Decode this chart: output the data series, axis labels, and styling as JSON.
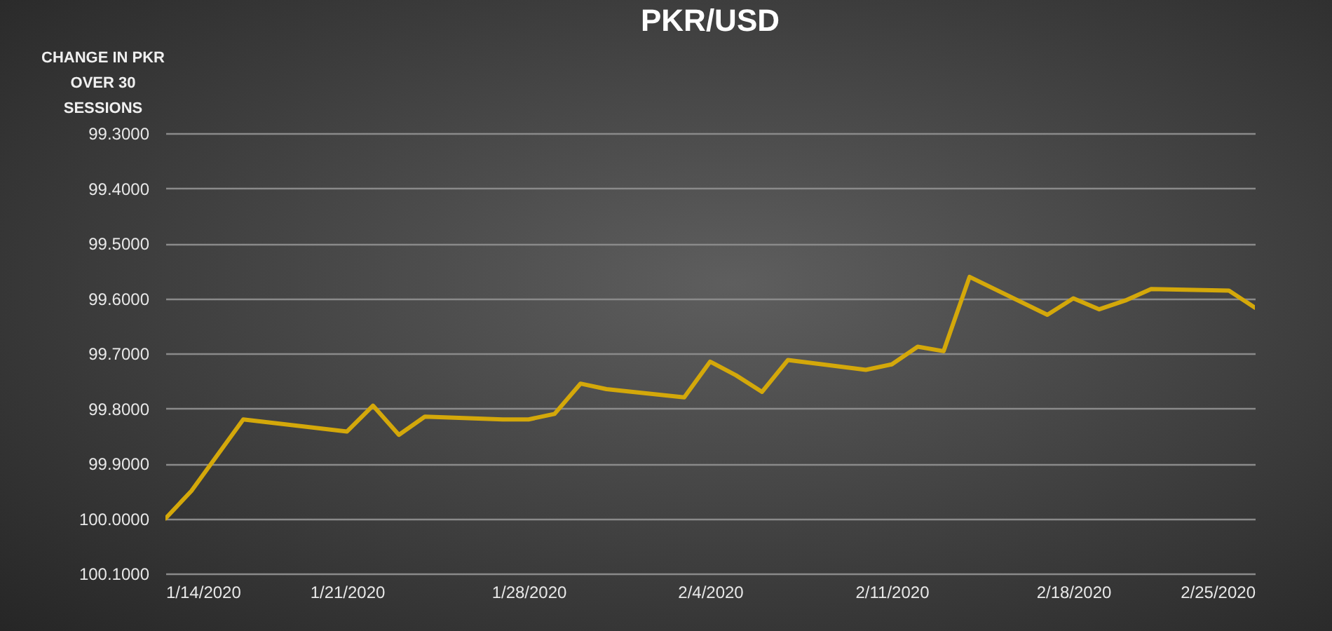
{
  "chart_data": {
    "type": "line",
    "title": "PKR/USD",
    "ylabel": "CHANGE IN PKR OVER 30 SESSIONS",
    "x": [
      "2020-01-14",
      "2020-01-15",
      "2020-01-16",
      "2020-01-17",
      "2020-01-21",
      "2020-01-22",
      "2020-01-23",
      "2020-01-24",
      "2020-01-27",
      "2020-01-28",
      "2020-01-29",
      "2020-01-30",
      "2020-01-31",
      "2020-02-03",
      "2020-02-04",
      "2020-02-05",
      "2020-02-06",
      "2020-02-07",
      "2020-02-10",
      "2020-02-11",
      "2020-02-12",
      "2020-02-13",
      "2020-02-14",
      "2020-02-17",
      "2020-02-18",
      "2020-02-19",
      "2020-02-20",
      "2020-02-21",
      "2020-02-24",
      "2020-02-25"
    ],
    "series": [
      {
        "color": "#d4a80a",
        "values": [
          100.0,
          99.95,
          99.885,
          99.82,
          99.842,
          99.795,
          99.848,
          99.815,
          99.82,
          99.82,
          99.81,
          99.755,
          99.765,
          99.78,
          99.715,
          99.74,
          99.77,
          99.712,
          99.73,
          99.72,
          99.688,
          99.696,
          99.561,
          99.63,
          99.6,
          99.62,
          99.604,
          99.583,
          99.586,
          99.617
        ]
      }
    ],
    "xlim": [
      "2020-01-14",
      "2020-02-25"
    ],
    "xticks": [
      {
        "value": "2020-01-14",
        "label": "1/14/2020"
      },
      {
        "value": "2020-01-21",
        "label": "1/21/2020"
      },
      {
        "value": "2020-01-28",
        "label": "1/28/2020"
      },
      {
        "value": "2020-02-04",
        "label": "2/4/2020"
      },
      {
        "value": "2020-02-11",
        "label": "2/11/2020"
      },
      {
        "value": "2020-02-18",
        "label": "2/18/2020"
      },
      {
        "value": "2020-02-25",
        "label": "2/25/2020"
      }
    ],
    "ylim": [
      100.1,
      99.3
    ],
    "yticks": [
      {
        "value": 99.3,
        "label": "99.3000"
      },
      {
        "value": 99.4,
        "label": "99.4000"
      },
      {
        "value": 99.5,
        "label": "99.5000"
      },
      {
        "value": 99.6,
        "label": "99.6000"
      },
      {
        "value": 99.7,
        "label": "99.7000"
      },
      {
        "value": 99.8,
        "label": "99.8000"
      },
      {
        "value": 99.9,
        "label": "99.9000"
      },
      {
        "value": 100.0,
        "label": "100.0000"
      },
      {
        "value": 100.1,
        "label": "100.1000"
      }
    ],
    "grid": "y",
    "marker": "none",
    "line_style": "solid"
  }
}
